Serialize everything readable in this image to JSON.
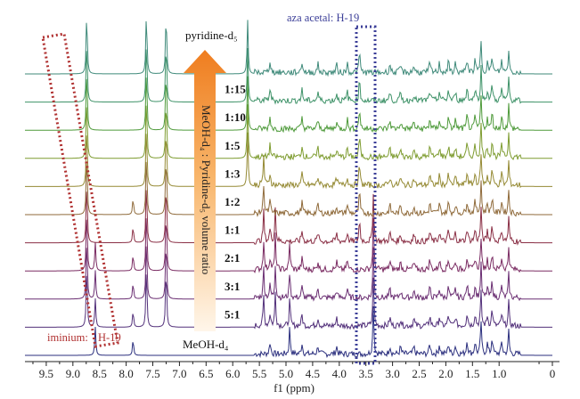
{
  "chart_data": {
    "type": "line",
    "title": "",
    "xlabel": "f1 (ppm)",
    "ylabel": "",
    "xlim": [
      9.9,
      0.0
    ],
    "x_reversed": true,
    "xticks": [
      "9.5",
      "9.0",
      "8.5",
      "8.0",
      "7.5",
      "7.0",
      "6.5",
      "6.0",
      "5.5",
      "5.0",
      "4.5",
      "4.0",
      "3.5",
      "3.0",
      "2.5",
      "2.0",
      "1.5",
      "1.0",
      "0"
    ],
    "xtick_values": [
      9.5,
      9.0,
      8.5,
      8.0,
      7.5,
      7.0,
      6.5,
      6.0,
      5.5,
      5.0,
      4.5,
      4.0,
      3.5,
      3.0,
      2.5,
      2.0,
      1.5,
      1.0,
      0.0
    ],
    "arrow_caption": "MeOH-d₄ : Pyridine-d₅ volume ratio",
    "annotations": {
      "aza_acetal": "aza acetal: H-19",
      "aza_acetal_ppm_range": [
        3.65,
        4.05
      ],
      "iminium": "iminium:",
      "iminium_h": "H-19",
      "iminium_ppm_range": [
        8.5,
        9.6
      ]
    },
    "series": [
      {
        "name": "MeOH-d₄",
        "label": "MeOH-d₄",
        "color": "#2b2f7e",
        "stage": 0
      },
      {
        "name": "5:1",
        "label": "5:1",
        "color": "#52307a",
        "stage": 1
      },
      {
        "name": "3:1",
        "label": "3:1",
        "color": "#6a2e72",
        "stage": 2
      },
      {
        "name": "2:1",
        "label": "2:1",
        "color": "#7a2b62",
        "stage": 3
      },
      {
        "name": "1:1",
        "label": "1:1",
        "color": "#8a2f45",
        "stage": 4
      },
      {
        "name": "1:2",
        "label": "1:2",
        "color": "#8f6a3a",
        "stage": 5
      },
      {
        "name": "1:3",
        "label": "1:3",
        "color": "#958a34",
        "stage": 6
      },
      {
        "name": "1:5",
        "label": "1:5",
        "color": "#7e9c30",
        "stage": 7
      },
      {
        "name": "1:10",
        "label": "1:10",
        "color": "#4e9a3a",
        "stage": 8
      },
      {
        "name": "1:15",
        "label": "1:15",
        "color": "#3e9268",
        "stage": 9
      },
      {
        "name": "pyridine-d₅",
        "label": "pyridine-d₅",
        "color": "#3f8a7a",
        "stage": 10
      }
    ],
    "peaks": [
      {
        "ppm": 8.74,
        "h": 1.9,
        "w": 0.012,
        "from": 1,
        "to": 10
      },
      {
        "ppm": 7.62,
        "h": 1.9,
        "w": 0.012,
        "from": 1,
        "to": 10
      },
      {
        "ppm": 7.25,
        "h": 1.9,
        "w": 0.012,
        "from": 1,
        "to": 10
      },
      {
        "ppm": 5.72,
        "h": 1.6,
        "w": 0.012,
        "from": 6,
        "to": 10
      },
      {
        "ppm": 8.58,
        "h": 0.85,
        "w": 0.012,
        "from": 0,
        "to": 3
      },
      {
        "ppm": 7.87,
        "h": 0.5,
        "w": 0.012,
        "from": 0,
        "to": 5
      },
      {
        "ppm": 5.42,
        "h": 0.9,
        "w": 0.012,
        "from": 1,
        "to": 6
      },
      {
        "ppm": 5.2,
        "h": 1.0,
        "w": 0.012,
        "from": 1,
        "to": 4
      },
      {
        "ppm": 4.93,
        "h": 0.8,
        "w": 0.012,
        "from": 0,
        "to": 3
      },
      {
        "ppm": 3.36,
        "h": 1.5,
        "w": 0.012,
        "from": 0,
        "to": 4
      },
      {
        "ppm": 3.62,
        "h": 0.7,
        "w": 0.012,
        "from": 4,
        "to": 10
      },
      {
        "ppm": 1.34,
        "h": 1.0,
        "w": 0.012,
        "from": 0,
        "to": 10
      },
      {
        "ppm": 0.82,
        "h": 0.7,
        "w": 0.012,
        "from": 0,
        "to": 10
      },
      {
        "ppm": 1.13,
        "h": 0.55,
        "w": 0.012,
        "from": 0,
        "to": 10
      },
      {
        "ppm": 1.6,
        "h": 0.4,
        "w": 0.015,
        "from": 0,
        "to": 10
      },
      {
        "ppm": 5.3,
        "h": 0.35,
        "w": 0.015,
        "from": 0,
        "to": 10
      },
      {
        "ppm": 4.7,
        "h": 0.32,
        "w": 0.015,
        "from": 0,
        "to": 10
      },
      {
        "ppm": 4.4,
        "h": 0.25,
        "w": 0.015,
        "from": 0,
        "to": 10
      },
      {
        "ppm": 4.05,
        "h": 0.22,
        "w": 0.015,
        "from": 0,
        "to": 10
      },
      {
        "ppm": 3.85,
        "h": 0.3,
        "w": 0.012,
        "from": 2,
        "to": 10
      },
      {
        "ppm": 3.05,
        "h": 0.25,
        "w": 0.015,
        "from": 0,
        "to": 10
      },
      {
        "ppm": 2.85,
        "h": 0.22,
        "w": 0.015,
        "from": 0,
        "to": 10
      },
      {
        "ppm": 2.6,
        "h": 0.22,
        "w": 0.015,
        "from": 0,
        "to": 10
      },
      {
        "ppm": 2.3,
        "h": 0.3,
        "w": 0.015,
        "from": 0,
        "to": 10
      },
      {
        "ppm": 2.12,
        "h": 0.28,
        "w": 0.015,
        "from": 0,
        "to": 10
      },
      {
        "ppm": 1.95,
        "h": 0.32,
        "w": 0.015,
        "from": 0,
        "to": 10
      },
      {
        "ppm": 1.82,
        "h": 0.26,
        "w": 0.015,
        "from": 0,
        "to": 10
      },
      {
        "ppm": 1.45,
        "h": 0.35,
        "w": 0.015,
        "from": 0,
        "to": 10
      },
      {
        "ppm": 1.22,
        "h": 0.3,
        "w": 0.015,
        "from": 0,
        "to": 10
      },
      {
        "ppm": 0.95,
        "h": 0.35,
        "w": 0.015,
        "from": 0,
        "to": 10
      }
    ]
  }
}
